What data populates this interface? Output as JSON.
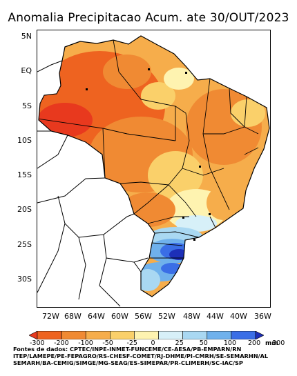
{
  "title": "Anomalia Precipitacao Acum. ate 30/OUT/2023",
  "lat_labels": [
    "5N",
    "EQ",
    "5S",
    "10S",
    "15S",
    "20S",
    "25S",
    "30S"
  ],
  "lon_labels": [
    "72W",
    "68W",
    "64W",
    "60W",
    "56W",
    "52W",
    "48W",
    "44W",
    "40W",
    "36W"
  ],
  "colorbar": {
    "unit": "mm",
    "labels": [
      "-300",
      "-200",
      "-100",
      "-50",
      "-25",
      "0",
      "25",
      "50",
      "100",
      "200",
      "300"
    ],
    "colors": [
      "#e8391e",
      "#ee6320",
      "#f08a33",
      "#f6ad4b",
      "#fad06a",
      "#fef3b0",
      "#d7f0f8",
      "#a9d8f2",
      "#6fb1ec",
      "#3a6ee6",
      "#1d2fb8"
    ]
  },
  "sources": [
    "Fontes de dados: CPTEC/INPE-INMET-FUNCEME/CE-AESA/PB-EMPARN/RN",
    "ITEP/LAMEPE/PE-FEPAGRO/RS-CHESF-COMET/RJ-DHME/PI-CMRH/SE-SEMARHN/AL",
    "SEMARH/BA-CEMIG/SIMGE/MG-SEAG/ES-SIMEPAR/PR-CLIMERH/SC-IAC/SP"
  ],
  "map": {
    "region": "Brazil",
    "variable": "Accumulated precipitation anomaly (mm)",
    "patterns": [
      {
        "area": "Amazon / North",
        "anomaly_class": "-200 to -50",
        "color": "#ee6320"
      },
      {
        "area": "Central-West",
        "anomaly_class": "-100 to -25",
        "color": "#f08a33"
      },
      {
        "area": "Northeast",
        "anomaly_class": "-50 to 0",
        "color": "#f6ad4b"
      },
      {
        "area": "Southeast",
        "anomaly_class": "-25 to 50",
        "color": "#fef3b0"
      },
      {
        "area": "South (PR/SC)",
        "anomaly_class": "100 to 300",
        "color": "#1d2fb8"
      },
      {
        "area": "South (RS)",
        "anomaly_class": "25 to 200",
        "color": "#6fb1ec"
      }
    ]
  }
}
